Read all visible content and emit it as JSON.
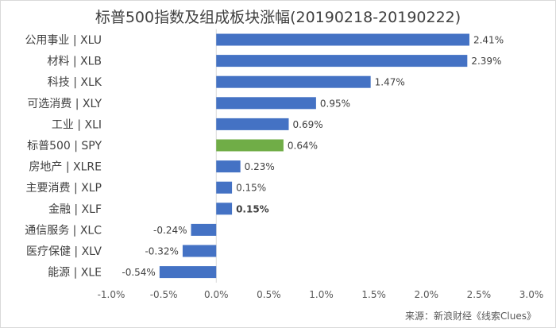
{
  "chart_data": {
    "type": "bar",
    "orientation": "horizontal",
    "title": "标普500指数及组成板块涨幅(20190218-20190222)",
    "categories": [
      "公用事业 | XLU",
      "材料 | XLB",
      "科技 | XLK",
      "可选消费 | XLY",
      "工业 | XLI",
      "标普500 | SPY",
      "房地产 | XLRE",
      "主要消费 | XLP",
      "金融 | XLF",
      "通信服务 | XLC",
      "医疗保健 | XLV",
      "能源 | XLE"
    ],
    "values": [
      2.41,
      2.39,
      1.47,
      0.95,
      0.69,
      0.64,
      0.23,
      0.15,
      0.15,
      -0.24,
      -0.32,
      -0.54
    ],
    "data_labels": [
      "2.41%",
      "2.39%",
      "1.47%",
      "0.95%",
      "0.69%",
      "0.64%",
      "0.23%",
      "0.15%",
      "0.15%",
      "-0.24%",
      "-0.32%",
      "-0.54%"
    ],
    "xlim": [
      -1.0,
      3.0
    ],
    "x_ticks": [
      -1.0,
      -0.5,
      0.0,
      0.5,
      1.0,
      1.5,
      2.0,
      2.5,
      3.0
    ],
    "x_tick_labels": [
      "-1.0%",
      "-0.5%",
      "0.0%",
      "0.5%",
      "1.0%",
      "1.5%",
      "2.0%",
      "2.5%",
      "3.0%"
    ],
    "xlabel": "",
    "ylabel": "",
    "grid": false,
    "legend": "none",
    "colors": {
      "default": "#4472c4",
      "highlight": "#70ad47",
      "axis": "#d9d9d9"
    },
    "highlight_category": "标普500 | SPY",
    "bold_label_category": "金融 | XLF"
  },
  "source": "来源：新浪财经《线索Clues》"
}
